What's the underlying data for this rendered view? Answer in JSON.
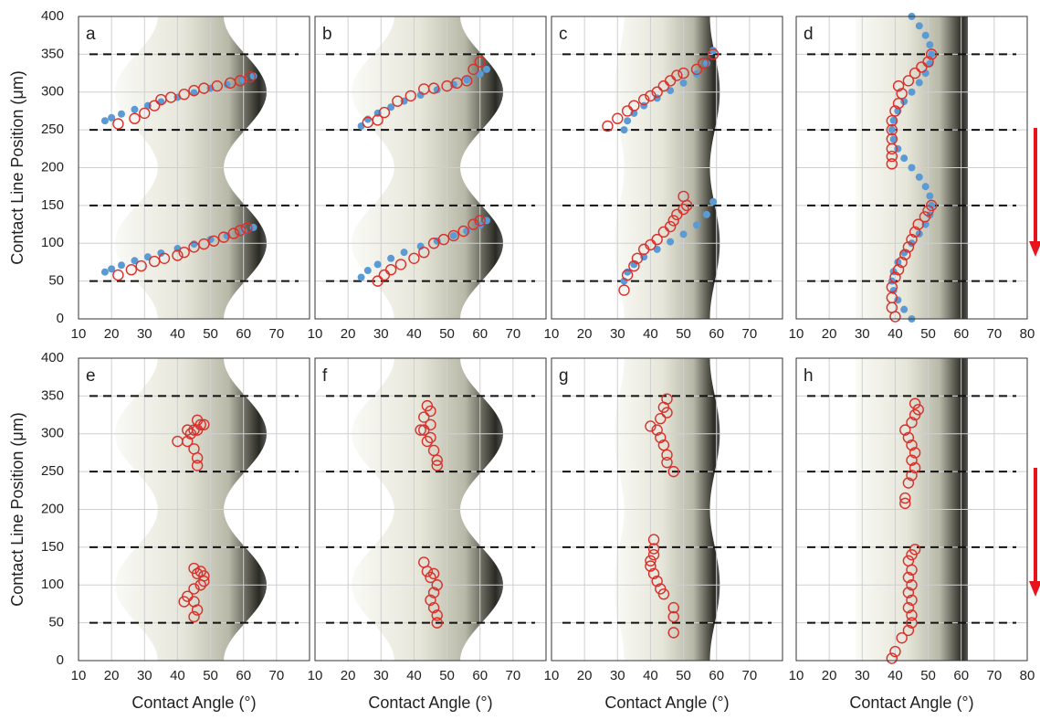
{
  "chart_data": [
    {
      "type": "scatter",
      "label": "a",
      "ylabel": "Contact Line Position (μm)",
      "xlim": [
        10,
        80
      ],
      "ylim": [
        0,
        400
      ],
      "xticks": [
        10,
        20,
        30,
        40,
        50,
        60,
        70
      ],
      "yticks": [
        0,
        50,
        100,
        150,
        200,
        250,
        300,
        350,
        400
      ],
      "ytick_labels": true,
      "grid": true,
      "hlines": [
        50,
        150,
        250,
        350
      ],
      "series": [
        {
          "color": "#5b9bd5",
          "marker": "dot",
          "x": [
            18,
            20,
            23,
            27,
            31,
            35,
            40,
            45,
            50,
            55,
            60,
            63,
            18,
            20,
            23,
            27,
            31,
            35,
            40,
            45,
            50,
            55,
            60,
            63
          ],
          "values": [
            62,
            66,
            71,
            77,
            82,
            87,
            93,
            99,
            105,
            110,
            116,
            121,
            262,
            266,
            271,
            277,
            282,
            287,
            293,
            299,
            305,
            310,
            316,
            321
          ]
        },
        {
          "color": "#d9302b",
          "marker": "circle",
          "x": [
            22,
            26,
            29,
            33,
            36,
            40,
            42,
            45,
            48,
            51,
            54,
            57,
            59,
            61,
            22,
            27,
            30,
            33,
            35,
            38,
            42,
            45,
            48,
            52,
            56,
            59,
            62
          ],
          "values": [
            58,
            65,
            70,
            76,
            80,
            84,
            88,
            95,
            99,
            103,
            108,
            113,
            117,
            120,
            258,
            265,
            272,
            282,
            290,
            293,
            297,
            302,
            305,
            308,
            312,
            315,
            320
          ]
        }
      ]
    },
    {
      "type": "scatter",
      "label": "b",
      "xlim": [
        10,
        80
      ],
      "ylim": [
        0,
        400
      ],
      "xticks": [
        10,
        20,
        30,
        40,
        50,
        60,
        70
      ],
      "yticks": [
        0,
        50,
        100,
        150,
        200,
        250,
        300,
        350,
        400
      ],
      "ytick_labels": false,
      "grid": true,
      "hlines": [
        50,
        150,
        250,
        350
      ],
      "series": [
        {
          "color": "#5b9bd5",
          "marker": "dot",
          "x": [
            24,
            26,
            29,
            33,
            37,
            42,
            47,
            52,
            56,
            60,
            62,
            24,
            26,
            29,
            33,
            37,
            42,
            47,
            52,
            56,
            60,
            62
          ],
          "values": [
            55,
            64,
            72,
            80,
            88,
            96,
            103,
            110,
            116,
            124,
            130,
            255,
            264,
            272,
            280,
            288,
            296,
            303,
            310,
            316,
            324,
            330
          ]
        },
        {
          "color": "#d9302b",
          "marker": "circle",
          "x": [
            29,
            31,
            33,
            36,
            40,
            43,
            46,
            49,
            52,
            55,
            58,
            60,
            26,
            29,
            31,
            35,
            39,
            43,
            46,
            50,
            53,
            56,
            58,
            60
          ],
          "values": [
            50,
            58,
            65,
            72,
            80,
            88,
            100,
            105,
            110,
            116,
            125,
            130,
            260,
            263,
            273,
            288,
            295,
            304,
            305,
            308,
            312,
            315,
            330,
            340
          ]
        }
      ]
    },
    {
      "type": "scatter",
      "label": "c",
      "xlim": [
        10,
        80
      ],
      "ylim": [
        0,
        400
      ],
      "xticks": [
        10,
        20,
        30,
        40,
        50,
        60,
        70
      ],
      "yticks": [
        0,
        50,
        100,
        150,
        200,
        250,
        300,
        350,
        400
      ],
      "ytick_labels": false,
      "grid": true,
      "hlines": [
        50,
        150,
        250,
        350
      ],
      "series": [
        {
          "color": "#5b9bd5",
          "marker": "dot",
          "x": [
            32,
            33,
            35,
            38,
            42,
            46,
            50,
            54,
            57,
            59,
            32,
            33,
            35,
            38,
            42,
            46,
            50,
            54,
            57,
            59
          ],
          "values": [
            50,
            62,
            72,
            82,
            92,
            102,
            112,
            124,
            138,
            155,
            250,
            262,
            272,
            282,
            292,
            302,
            312,
            324,
            338,
            355
          ]
        },
        {
          "color": "#d9302b",
          "marker": "circle",
          "x": [
            32,
            33,
            35,
            36,
            38,
            40,
            42,
            44,
            46,
            47,
            48,
            50,
            51,
            50,
            27,
            30,
            33,
            35,
            38,
            40,
            42,
            44,
            46,
            48,
            50,
            54,
            56,
            59
          ],
          "values": [
            38,
            58,
            70,
            80,
            92,
            98,
            105,
            115,
            122,
            130,
            138,
            145,
            150,
            162,
            255,
            265,
            275,
            282,
            290,
            295,
            300,
            308,
            315,
            322,
            325,
            330,
            338,
            350
          ]
        }
      ]
    },
    {
      "type": "scatter",
      "label": "d",
      "xlim": [
        10,
        80
      ],
      "ylim": [
        0,
        400
      ],
      "xticks": [
        10,
        20,
        30,
        40,
        50,
        60,
        70,
        80
      ],
      "yticks": [
        0,
        50,
        100,
        150,
        200,
        250,
        300,
        350,
        400
      ],
      "ytick_labels": false,
      "grid": true,
      "hlines": [
        50,
        150,
        250,
        350
      ],
      "series": [
        {
          "color": "#5b9bd5",
          "marker": "dot",
          "x": [
            45,
            42.7,
            40.8,
            39.5,
            39,
            39.5,
            40.8,
            42.7,
            45,
            47.3,
            49.2,
            50.5,
            51,
            50.5,
            49.2,
            47.3,
            45,
            42.7,
            40.8,
            39.5,
            39,
            39.5,
            40.8,
            42.7,
            45,
            47.3,
            49.2,
            50.5,
            51,
            50.5,
            49.2,
            47.3,
            45
          ],
          "values": [
            0,
            12.5,
            25,
            37.5,
            50,
            62.5,
            75,
            87.5,
            100,
            112.5,
            125,
            137.5,
            150,
            162.5,
            175,
            187.5,
            200,
            212.5,
            225,
            237.5,
            250,
            262.5,
            275,
            287.5,
            300,
            312.5,
            325,
            337.5,
            350,
            362.5,
            375,
            387.5,
            400
          ]
        },
        {
          "color": "#d9302b",
          "marker": "circle",
          "x": [
            40,
            39,
            39,
            39,
            40,
            41,
            42,
            43,
            44,
            45,
            46,
            47,
            49,
            50,
            51,
            39,
            39,
            39,
            39,
            39,
            39,
            40,
            41,
            42,
            41,
            44,
            46,
            48,
            50,
            51
          ],
          "values": [
            3,
            15,
            28,
            42,
            55,
            65,
            75,
            85,
            95,
            105,
            115,
            125,
            135,
            143,
            150,
            205,
            215,
            225,
            238,
            250,
            262,
            275,
            285,
            298,
            308,
            315,
            325,
            333,
            340,
            350
          ]
        }
      ]
    },
    {
      "type": "scatter",
      "label": "e",
      "ylabel": "Contact Line Position (μm)",
      "xlabel": "Contact Angle (°)",
      "xlim": [
        10,
        80
      ],
      "ylim": [
        0,
        400
      ],
      "xticks": [
        10,
        20,
        30,
        40,
        50,
        60,
        70
      ],
      "yticks": [
        0,
        50,
        100,
        150,
        200,
        250,
        300,
        350,
        400
      ],
      "ytick_labels": true,
      "grid": true,
      "hlines": [
        50,
        150,
        250,
        350
      ],
      "series": [
        {
          "color": "#d9302b",
          "marker": "circle",
          "x": [
            45,
            46,
            45,
            42,
            43,
            45,
            47,
            48,
            48,
            46,
            45,
            47,
            46,
            46,
            45,
            43,
            40,
            44,
            43,
            46,
            47,
            48,
            46,
            45
          ],
          "values": [
            58,
            67,
            78,
            78,
            85,
            95,
            100,
            105,
            112,
            115,
            122,
            118,
            258,
            268,
            280,
            290,
            290,
            300,
            305,
            305,
            312,
            312,
            318,
            305
          ]
        }
      ]
    },
    {
      "type": "scatter",
      "label": "f",
      "xlabel": "Contact Angle (°)",
      "xlim": [
        10,
        80
      ],
      "ylim": [
        0,
        400
      ],
      "xticks": [
        10,
        20,
        30,
        40,
        50,
        60,
        70
      ],
      "yticks": [
        0,
        50,
        100,
        150,
        200,
        250,
        300,
        350,
        400
      ],
      "ytick_labels": false,
      "grid": true,
      "hlines": [
        50,
        150,
        250,
        350
      ],
      "series": [
        {
          "color": "#d9302b",
          "marker": "circle",
          "x": [
            47,
            47,
            46,
            45,
            46,
            47,
            45,
            46,
            44,
            43,
            47,
            47,
            46,
            44,
            45,
            43,
            42,
            45,
            43,
            45,
            44
          ],
          "values": [
            50,
            60,
            70,
            80,
            90,
            100,
            110,
            115,
            118,
            130,
            258,
            265,
            278,
            290,
            295,
            305,
            305,
            312,
            322,
            330,
            337
          ]
        }
      ]
    },
    {
      "type": "scatter",
      "label": "g",
      "xlabel": "Contact Angle (°)",
      "xlim": [
        10,
        80
      ],
      "ylim": [
        0,
        400
      ],
      "xticks": [
        10,
        20,
        30,
        40,
        50,
        60,
        70
      ],
      "yticks": [
        0,
        50,
        100,
        150,
        200,
        250,
        300,
        350,
        400
      ],
      "ytick_labels": false,
      "grid": true,
      "hlines": [
        50,
        150,
        250,
        350
      ],
      "series": [
        {
          "color": "#d9302b",
          "marker": "circle",
          "x": [
            47,
            47,
            47,
            44,
            43,
            42,
            41,
            40,
            40,
            41,
            41,
            41,
            47,
            45,
            45,
            44,
            43,
            42,
            40,
            43,
            45,
            44,
            45
          ],
          "values": [
            37,
            58,
            70,
            88,
            95,
            105,
            115,
            125,
            132,
            140,
            148,
            160,
            250,
            262,
            272,
            285,
            295,
            305,
            310,
            320,
            328,
            335,
            346
          ]
        }
      ]
    },
    {
      "type": "scatter",
      "label": "h",
      "xlabel": "Contact Angle (°)",
      "xlim": [
        10,
        80
      ],
      "ylim": [
        0,
        400
      ],
      "xticks": [
        10,
        20,
        30,
        40,
        50,
        60,
        70,
        80
      ],
      "yticks": [
        0,
        50,
        100,
        150,
        200,
        250,
        300,
        350,
        400
      ],
      "ytick_labels": false,
      "grid": true,
      "hlines": [
        50,
        150,
        250,
        350
      ],
      "series": [
        {
          "color": "#d9302b",
          "marker": "circle",
          "x": [
            39,
            40,
            42,
            44,
            45,
            45,
            44,
            45,
            44,
            45,
            44,
            45,
            44,
            45,
            46,
            43,
            43,
            44,
            45,
            46,
            45,
            46,
            45,
            44,
            43,
            45,
            46,
            47,
            46
          ],
          "values": [
            3,
            12,
            30,
            40,
            50,
            60,
            70,
            80,
            90,
            100,
            110,
            120,
            132,
            140,
            147,
            208,
            215,
            235,
            245,
            255,
            265,
            275,
            285,
            295,
            305,
            315,
            325,
            332,
            340
          ]
        }
      ]
    }
  ]
}
